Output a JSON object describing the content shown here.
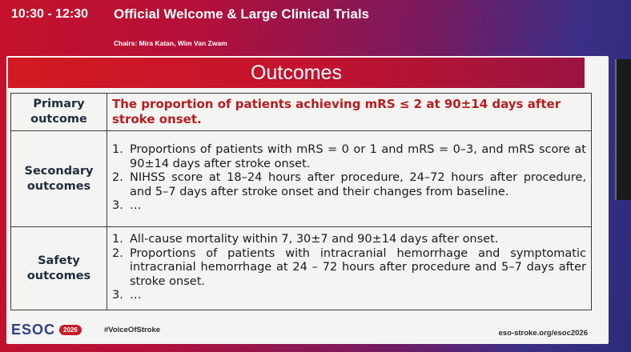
{
  "session": {
    "time": "10:30 - 12:30",
    "title": "Official Welcome & Large Clinical Trials",
    "chairs": "Chairs: Mira Katan, Wim Van Zwam"
  },
  "slide": {
    "title": "Outcomes",
    "rows": [
      {
        "label": "Primary outcome",
        "text": "The proportion of patients achieving mRS ≤ 2 at 90±14 days after stroke onset."
      },
      {
        "label": "Secondary outcomes",
        "items": [
          {
            "num": "1.",
            "text": "Proportions of patients with mRS = 0 or 1 and mRS = 0–3, and mRS score at 90±14 days after stroke onset."
          },
          {
            "num": "2.",
            "text": "NIHSS score at 18–24 hours after procedure, 24–72 hours after procedure, and 5–7 days after stroke onset and their changes from baseline."
          },
          {
            "num": "3.",
            "text": "…"
          }
        ]
      },
      {
        "label": "Safety outcomes",
        "items": [
          {
            "num": "1.",
            "text": "All-cause mortality within 7, 30±7 and 90±14 days after onset."
          },
          {
            "num": "2.",
            "text": "Proportions of patients with intracranial hemorrhage and symptomatic intracranial hemorrhage at 24 – 72 hours after procedure and 5–7 days after stroke onset."
          },
          {
            "num": "3.",
            "text": "…"
          }
        ]
      }
    ]
  },
  "footer": {
    "logo": "ESOC",
    "logo_year": "2026",
    "hashtag": "#VoiceOfStroke",
    "url": "eso-stroke.org/esoc2026"
  },
  "colors": {
    "header_red": "#d31a20",
    "primary_text": "#b81c20",
    "logo_blue": "#2a3f8a"
  }
}
